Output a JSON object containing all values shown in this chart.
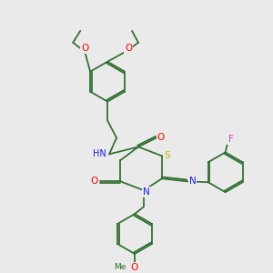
{
  "bg_color": "#eaeaea",
  "bond_color": "#2d6e2d",
  "atom_colors": {
    "N": "#1a1aff",
    "O": "#ff0000",
    "S": "#b8b800",
    "F": "#cc44cc",
    "C": "#2d6e2d"
  },
  "figsize": [
    3.0,
    3.0
  ],
  "dpi": 100,
  "lw": 1.25,
  "fs": 6.8
}
